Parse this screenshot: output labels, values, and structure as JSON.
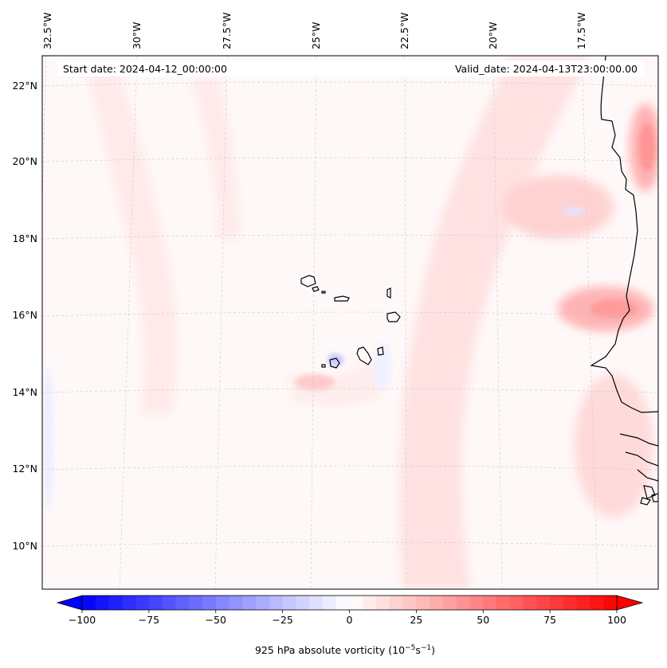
{
  "header": {
    "start_date_label": "Start date: 2024-04-12_00:00:00",
    "valid_date_label": "Valid_date: 2024-04-13T23:00:00.00"
  },
  "chart_data": {
    "type": "heatmap",
    "title": "",
    "variable": "925 hPa absolute vorticity",
    "colorbar_label_main": "925 hPa absolute vorticity (10",
    "colorbar_label_exp1": "−5",
    "colorbar_label_mid": "s",
    "colorbar_label_exp2": "−1",
    "colorbar_label_end": ")",
    "colormap": "bwr",
    "colorbar_range": [
      -100,
      100
    ],
    "colorbar_extend": "both",
    "colorbar_levels": 41,
    "colorbar_ticks": [
      "−100",
      "−75",
      "−50",
      "−25",
      "0",
      "25",
      "50",
      "75",
      "100"
    ],
    "colorbar_tick_values": [
      -100,
      -75,
      -50,
      -25,
      0,
      25,
      50,
      75,
      100
    ],
    "lon_ticks": [
      "32.5°W",
      "30°W",
      "27.5°W",
      "25°W",
      "22.5°W",
      "20°W",
      "17.5°W"
    ],
    "lon_tick_values": [
      -32.5,
      -30,
      -27.5,
      -25,
      -22.5,
      -20,
      -17.5
    ],
    "lat_ticks": [
      "22°N",
      "20°N",
      "18°N",
      "16°N",
      "14°N",
      "12°N",
      "10°N"
    ],
    "lat_tick_values": [
      22,
      20,
      18,
      16,
      14,
      12,
      10
    ],
    "extent": {
      "lon": [
        -33,
        -16.3
      ],
      "lat": [
        8.9,
        22.8
      ]
    },
    "gridlines": true,
    "coastlines": true,
    "regions": [
      {
        "name": "Cape Verde islands",
        "lon": -24,
        "lat": 16
      },
      {
        "name": "West Africa coast (Mauritania/Senegal)",
        "lon": -16.5,
        "lat": 16
      }
    ],
    "field_features": [
      {
        "desc": "strong positive vorticity near coast",
        "lon": -16.8,
        "lat": 16.2,
        "value": 30
      },
      {
        "desc": "positive vorticity near coast north",
        "lon": -16.6,
        "lat": 20.3,
        "value": 35
      },
      {
        "desc": "broad weak positive band",
        "lon": -21.5,
        "lat": 16,
        "value": 10
      },
      {
        "desc": "weak negative near Fogo island",
        "lon": -24.4,
        "lat": 14.9,
        "value": -20
      }
    ],
    "colors": {
      "negative": "#0000ff",
      "zero": "#ffffff",
      "positive": "#ff0000"
    }
  }
}
